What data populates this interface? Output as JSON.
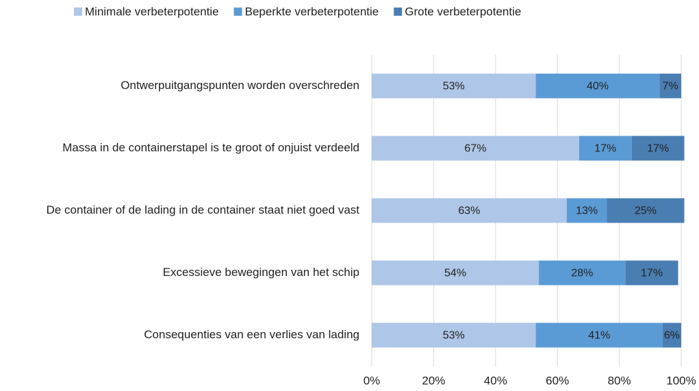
{
  "chart_data": {
    "type": "stacked_barh",
    "categories": [
      "Ontwerpuitgangspunten worden overschreden",
      "Massa in de containerstapel is te groot of onjuist verdeeld",
      "De container of de lading in de container staat niet goed vast",
      "Excessieve bewegingen van het schip",
      "Consequenties van een verlies van lading"
    ],
    "series": [
      {
        "name": "Minimale verbeterpotentie",
        "color": "#aec6e7",
        "values": [
          53,
          67,
          63,
          54,
          53
        ],
        "value_labels": [
          "53%",
          "67%",
          "63%",
          "54%",
          "53%"
        ]
      },
      {
        "name": "Beperkte verbeterpotentie",
        "color": "#5b9bd5",
        "values": [
          40,
          17,
          13,
          28,
          41
        ],
        "value_labels": [
          "40%",
          "17%",
          "13%",
          "28%",
          "41%"
        ]
      },
      {
        "name": "Grote verbeterpotentie",
        "color": "#4a7eb3",
        "values": [
          7,
          17,
          25,
          17,
          6
        ],
        "value_labels": [
          "7%",
          "17%",
          "25%",
          "17%",
          "6%"
        ]
      }
    ],
    "xlim": [
      0,
      100
    ],
    "xticks": [
      {
        "value": 0,
        "label": "0%"
      },
      {
        "value": 20,
        "label": "20%"
      },
      {
        "value": 40,
        "label": "40%"
      },
      {
        "value": 60,
        "label": "60%"
      },
      {
        "value": 80,
        "label": "80%"
      },
      {
        "value": 100,
        "label": "100%"
      }
    ],
    "grid": true,
    "legend": "top"
  }
}
